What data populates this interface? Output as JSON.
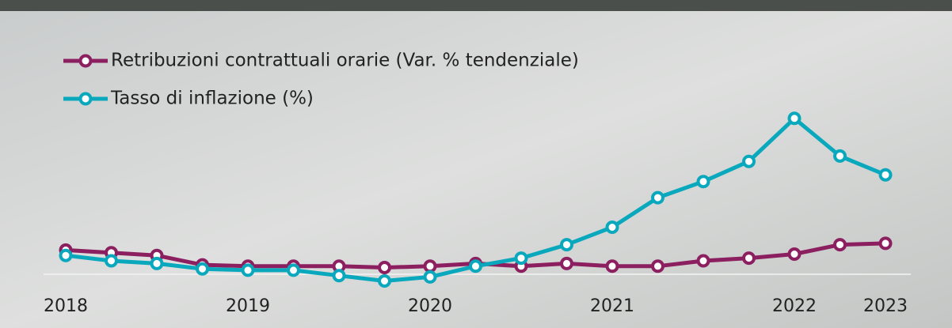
{
  "chart_data": {
    "type": "line",
    "categories": [
      "2018",
      null,
      null,
      null,
      "2019",
      null,
      null,
      null,
      "2020",
      null,
      null,
      null,
      "2021",
      null,
      null,
      null,
      "2022",
      null,
      "2023"
    ],
    "series": [
      {
        "name": "Retribuzioni contrattuali orarie (Var. % tendenziale)",
        "color": "#8b1f5f",
        "values": [
          1.8,
          1.6,
          1.4,
          0.7,
          0.6,
          0.6,
          0.6,
          0.5,
          0.6,
          0.8,
          0.6,
          0.8,
          0.6,
          0.6,
          1.0,
          1.2,
          1.5,
          2.2,
          2.3
        ]
      },
      {
        "name": "Tasso di inflazione (%)",
        "color": "#0aa8bd",
        "values": [
          1.4,
          1.0,
          0.8,
          0.4,
          0.3,
          0.3,
          -0.1,
          -0.5,
          -0.2,
          0.6,
          1.2,
          2.2,
          3.5,
          5.7,
          6.9,
          8.4,
          11.6,
          8.8,
          7.4
        ]
      }
    ],
    "ylim": [
      -1,
      14
    ]
  }
}
